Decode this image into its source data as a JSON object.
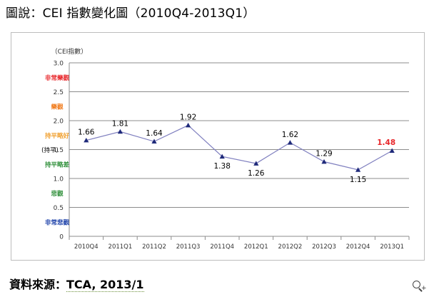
{
  "caption": "圖說：CEI 指數變化圖（2010Q4-2013Q1）",
  "source": {
    "prefix": "資料來源：",
    "text": "TCA, 2013/1"
  },
  "zoom_icon": "zoom-in-icon",
  "chart_data": {
    "type": "line",
    "ylabel": "（CEI指數）",
    "ylim": [
      0,
      3.0
    ],
    "yticks": [
      "0",
      "0.5",
      "1.0",
      "1.5",
      "2.0",
      "2.5",
      "3.0"
    ],
    "ytick_values": [
      0,
      0.5,
      1.0,
      1.5,
      2.0,
      2.5,
      3.0
    ],
    "grid": true,
    "categories": [
      "2010Q4",
      "2011Q1",
      "2011Q2",
      "2011Q3",
      "2011Q4",
      "2012Q1",
      "2012Q2",
      "2012Q3",
      "2012Q4",
      "2013Q1"
    ],
    "values": [
      1.66,
      1.81,
      1.64,
      1.92,
      1.38,
      1.26,
      1.62,
      1.29,
      1.15,
      1.48
    ],
    "labels": [
      "1.66",
      "1.81",
      "1.64",
      "1.92",
      "1.38",
      "1.26",
      "1.62",
      "1.29",
      "1.15",
      "1.48"
    ],
    "label_positions": [
      "above",
      "above",
      "above",
      "above",
      "below",
      "below",
      "above",
      "above",
      "below",
      "above"
    ],
    "highlight_last": true,
    "line_color": "#7f7fbf",
    "marker_color": "#1f2a7a",
    "highlight_color": "#e8262a",
    "zone_labels": [
      {
        "text": "非常樂觀",
        "y": 2.75,
        "color": "#e8262a"
      },
      {
        "text": "樂觀",
        "y": 2.25,
        "color": "#f07a1a"
      },
      {
        "text": "持平略好",
        "y": 1.75,
        "color": "#f0a030"
      },
      {
        "text": "(持平)",
        "y": 1.5,
        "color": "#000000"
      },
      {
        "text": "持平略差",
        "y": 1.25,
        "color": "#2f8f3a"
      },
      {
        "text": "悲觀",
        "y": 0.75,
        "color": "#2f8f3a"
      },
      {
        "text": "非常悲觀",
        "y": 0.25,
        "color": "#1a3fa8"
      }
    ]
  }
}
